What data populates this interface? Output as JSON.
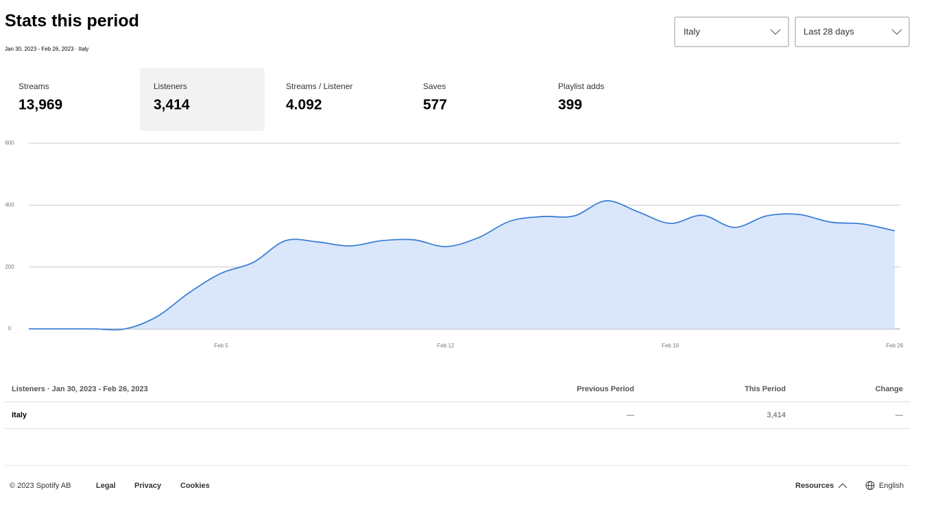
{
  "header": {
    "title": "Stats this period",
    "subtitle": "Jan 30, 2023 - Feb 26, 2023 · Italy"
  },
  "filters": {
    "country": "Italy",
    "period": "Last 28 days"
  },
  "metrics": [
    {
      "label": "Streams",
      "value": "13,969"
    },
    {
      "label": "Listeners",
      "value": "3,414"
    },
    {
      "label": "Streams / Listener",
      "value": "4.092"
    },
    {
      "label": "Saves",
      "value": "577"
    },
    {
      "label": "Playlist adds",
      "value": "399"
    }
  ],
  "chart_data": {
    "type": "area",
    "categories": [
      null,
      null,
      null,
      null,
      null,
      null,
      "Feb 5",
      null,
      null,
      null,
      null,
      null,
      null,
      "Feb 12",
      null,
      null,
      null,
      null,
      null,
      null,
      "Feb 19",
      null,
      null,
      null,
      null,
      null,
      null,
      "Feb 26"
    ],
    "values": [
      0,
      0,
      0,
      0,
      40,
      117,
      180,
      215,
      285,
      281,
      268,
      285,
      288,
      266,
      294,
      348,
      363,
      365,
      414,
      378,
      341,
      367,
      328,
      365,
      370,
      345,
      339,
      317
    ],
    "color": "#3b7fd6",
    "fill": "#d6e4fb",
    "ylim": [
      0,
      600
    ],
    "yticks": [
      0,
      200,
      400,
      600
    ],
    "grid": true
  },
  "table": {
    "title": "Listeners · Jan 30, 2023 - Feb 26, 2023",
    "columns": [
      "Previous Period",
      "This Period",
      "Change"
    ],
    "rows": [
      [
        "Italy",
        "—",
        "3,414",
        "—"
      ]
    ]
  },
  "footer": {
    "copyright": "© 2023 Spotify AB",
    "links": [
      "Legal",
      "Privacy",
      "Cookies"
    ],
    "resources": "Resources",
    "language": "English"
  }
}
